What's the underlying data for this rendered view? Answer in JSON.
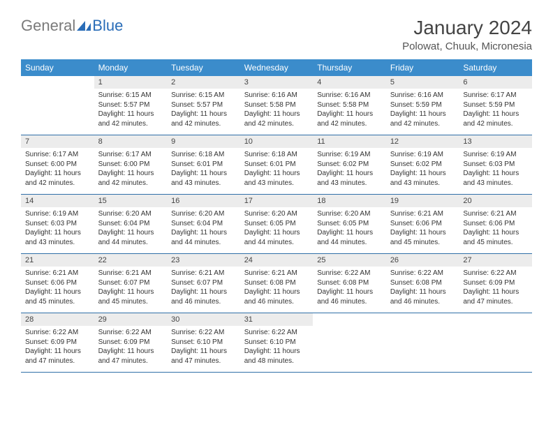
{
  "logo": {
    "part1": "General",
    "part2": "Blue"
  },
  "title": "January 2024",
  "location": "Polowat, Chuuk, Micronesia",
  "colors": {
    "header_bg": "#3b8ccb",
    "header_text": "#ffffff",
    "daynum_bg": "#ececec",
    "rule": "#2f6fa8",
    "logo_gray": "#7a7a7a",
    "logo_blue": "#2a6db8"
  },
  "dow": [
    "Sunday",
    "Monday",
    "Tuesday",
    "Wednesday",
    "Thursday",
    "Friday",
    "Saturday"
  ],
  "labels": {
    "sunrise": "Sunrise:",
    "sunset": "Sunset:",
    "daylight": "Daylight:"
  },
  "weeks": [
    [
      null,
      {
        "n": "1",
        "sr": "6:15 AM",
        "ss": "5:57 PM",
        "dl": "11 hours and 42 minutes."
      },
      {
        "n": "2",
        "sr": "6:15 AM",
        "ss": "5:57 PM",
        "dl": "11 hours and 42 minutes."
      },
      {
        "n": "3",
        "sr": "6:16 AM",
        "ss": "5:58 PM",
        "dl": "11 hours and 42 minutes."
      },
      {
        "n": "4",
        "sr": "6:16 AM",
        "ss": "5:58 PM",
        "dl": "11 hours and 42 minutes."
      },
      {
        "n": "5",
        "sr": "6:16 AM",
        "ss": "5:59 PM",
        "dl": "11 hours and 42 minutes."
      },
      {
        "n": "6",
        "sr": "6:17 AM",
        "ss": "5:59 PM",
        "dl": "11 hours and 42 minutes."
      }
    ],
    [
      {
        "n": "7",
        "sr": "6:17 AM",
        "ss": "6:00 PM",
        "dl": "11 hours and 42 minutes."
      },
      {
        "n": "8",
        "sr": "6:17 AM",
        "ss": "6:00 PM",
        "dl": "11 hours and 42 minutes."
      },
      {
        "n": "9",
        "sr": "6:18 AM",
        "ss": "6:01 PM",
        "dl": "11 hours and 43 minutes."
      },
      {
        "n": "10",
        "sr": "6:18 AM",
        "ss": "6:01 PM",
        "dl": "11 hours and 43 minutes."
      },
      {
        "n": "11",
        "sr": "6:19 AM",
        "ss": "6:02 PM",
        "dl": "11 hours and 43 minutes."
      },
      {
        "n": "12",
        "sr": "6:19 AM",
        "ss": "6:02 PM",
        "dl": "11 hours and 43 minutes."
      },
      {
        "n": "13",
        "sr": "6:19 AM",
        "ss": "6:03 PM",
        "dl": "11 hours and 43 minutes."
      }
    ],
    [
      {
        "n": "14",
        "sr": "6:19 AM",
        "ss": "6:03 PM",
        "dl": "11 hours and 43 minutes."
      },
      {
        "n": "15",
        "sr": "6:20 AM",
        "ss": "6:04 PM",
        "dl": "11 hours and 44 minutes."
      },
      {
        "n": "16",
        "sr": "6:20 AM",
        "ss": "6:04 PM",
        "dl": "11 hours and 44 minutes."
      },
      {
        "n": "17",
        "sr": "6:20 AM",
        "ss": "6:05 PM",
        "dl": "11 hours and 44 minutes."
      },
      {
        "n": "18",
        "sr": "6:20 AM",
        "ss": "6:05 PM",
        "dl": "11 hours and 44 minutes."
      },
      {
        "n": "19",
        "sr": "6:21 AM",
        "ss": "6:06 PM",
        "dl": "11 hours and 45 minutes."
      },
      {
        "n": "20",
        "sr": "6:21 AM",
        "ss": "6:06 PM",
        "dl": "11 hours and 45 minutes."
      }
    ],
    [
      {
        "n": "21",
        "sr": "6:21 AM",
        "ss": "6:06 PM",
        "dl": "11 hours and 45 minutes."
      },
      {
        "n": "22",
        "sr": "6:21 AM",
        "ss": "6:07 PM",
        "dl": "11 hours and 45 minutes."
      },
      {
        "n": "23",
        "sr": "6:21 AM",
        "ss": "6:07 PM",
        "dl": "11 hours and 46 minutes."
      },
      {
        "n": "24",
        "sr": "6:21 AM",
        "ss": "6:08 PM",
        "dl": "11 hours and 46 minutes."
      },
      {
        "n": "25",
        "sr": "6:22 AM",
        "ss": "6:08 PM",
        "dl": "11 hours and 46 minutes."
      },
      {
        "n": "26",
        "sr": "6:22 AM",
        "ss": "6:08 PM",
        "dl": "11 hours and 46 minutes."
      },
      {
        "n": "27",
        "sr": "6:22 AM",
        "ss": "6:09 PM",
        "dl": "11 hours and 47 minutes."
      }
    ],
    [
      {
        "n": "28",
        "sr": "6:22 AM",
        "ss": "6:09 PM",
        "dl": "11 hours and 47 minutes."
      },
      {
        "n": "29",
        "sr": "6:22 AM",
        "ss": "6:09 PM",
        "dl": "11 hours and 47 minutes."
      },
      {
        "n": "30",
        "sr": "6:22 AM",
        "ss": "6:10 PM",
        "dl": "11 hours and 47 minutes."
      },
      {
        "n": "31",
        "sr": "6:22 AM",
        "ss": "6:10 PM",
        "dl": "11 hours and 48 minutes."
      },
      null,
      null,
      null
    ]
  ]
}
